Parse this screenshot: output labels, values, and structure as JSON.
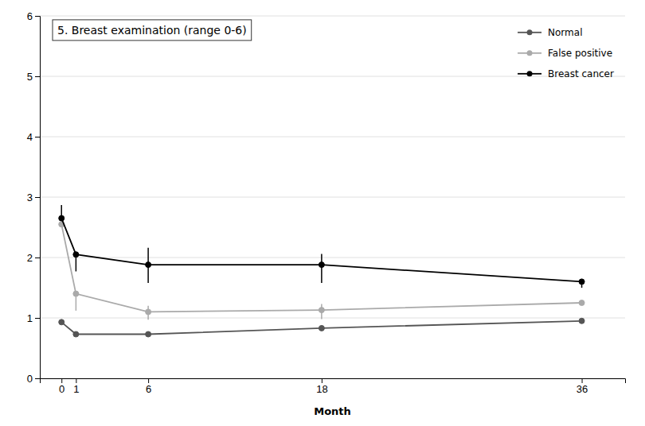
{
  "chart_data": {
    "type": "line",
    "title": "5. Breast examination (range 0-6)",
    "xlabel": "Month",
    "x": [
      0,
      1,
      6,
      18,
      36
    ],
    "xlim": [
      -1.5,
      39
    ],
    "xticks": [
      0,
      1,
      6,
      18,
      36
    ],
    "ylim": [
      0,
      6
    ],
    "yticks": [
      0,
      1,
      2,
      3,
      4,
      5,
      6
    ],
    "grid": true,
    "legend": "top-right",
    "marker": "circle",
    "series": [
      {
        "name": "Normal",
        "color": "#555555",
        "values": [
          0.93,
          0.73,
          0.73,
          0.83,
          0.95
        ],
        "error_low": [
          0.0,
          0.0,
          0.0,
          0.0,
          0.0
        ],
        "error_high": [
          0.0,
          0.0,
          0.0,
          0.0,
          0.0
        ]
      },
      {
        "name": "False positive",
        "color": "#aaaaaa",
        "values": [
          2.55,
          1.4,
          1.1,
          1.13,
          1.25
        ],
        "error_low": [
          0.0,
          0.28,
          0.13,
          0.15,
          0.0
        ],
        "error_high": [
          0.0,
          0.0,
          0.1,
          0.1,
          0.0
        ]
      },
      {
        "name": "Breast cancer",
        "color": "#000000",
        "values": [
          2.65,
          2.05,
          1.88,
          1.88,
          1.6
        ],
        "error_low": [
          0.0,
          0.28,
          0.3,
          0.3,
          0.1
        ],
        "error_high": [
          0.22,
          0.0,
          0.28,
          0.18,
          0.0
        ]
      }
    ]
  }
}
